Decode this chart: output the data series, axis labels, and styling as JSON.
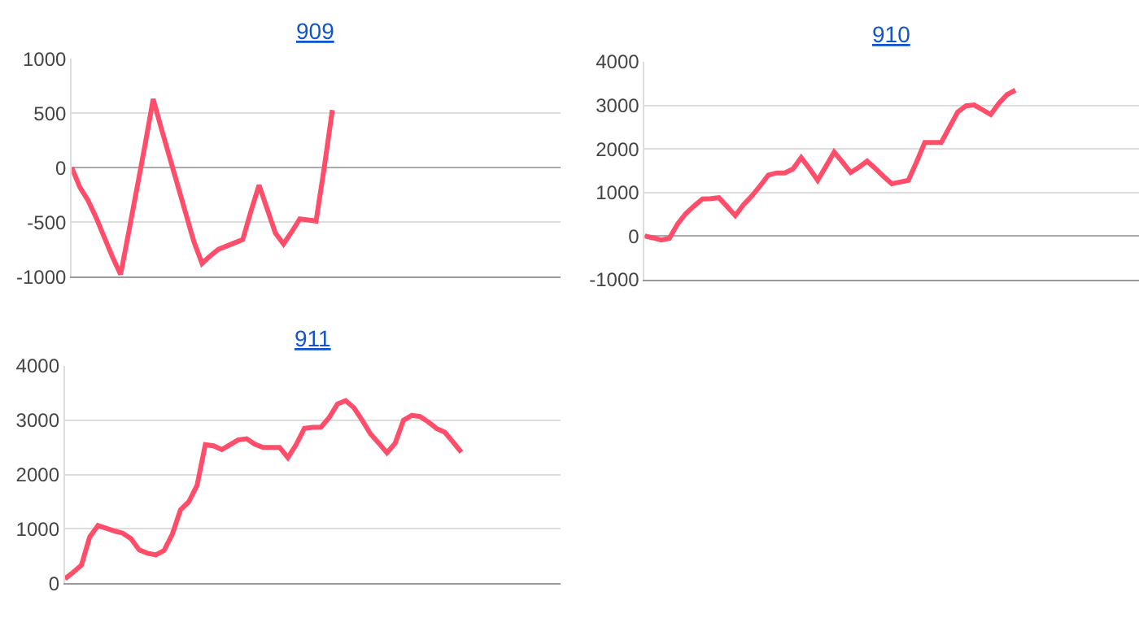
{
  "chart_data": [
    {
      "type": "line",
      "title": "909",
      "categories": [
        null,
        null,
        null,
        null,
        null,
        null,
        null,
        null,
        null,
        null,
        null,
        null,
        null,
        null,
        null,
        null,
        null,
        null,
        null,
        null,
        null,
        null,
        null,
        null,
        null,
        null,
        null,
        null,
        null,
        null,
        null,
        null,
        null,
        null,
        null,
        null,
        null,
        null,
        null,
        null,
        null,
        null,
        null,
        null,
        null,
        null,
        null,
        null,
        null,
        null,
        null,
        null,
        null,
        null,
        null,
        null,
        null,
        null,
        null,
        null,
        null
      ],
      "series": [
        {
          "color": "#ff4d6a",
          "values": [
            0,
            -180,
            -300,
            -460,
            -640,
            -820,
            -980,
            -590,
            -190,
            210,
            630,
            360,
            100,
            -160,
            -420,
            -680,
            -880,
            -810,
            -750,
            -720,
            -690,
            -660,
            -400,
            -160,
            -380,
            -600,
            -700,
            -590,
            -470,
            -480,
            -490,
            0,
            530,
            null,
            null,
            null,
            null,
            null,
            null,
            null,
            null,
            null,
            null,
            null,
            null,
            null,
            null,
            null,
            null,
            null,
            null,
            null,
            null,
            null,
            null,
            null,
            null,
            null,
            null,
            null,
            null
          ]
        }
      ],
      "ylim": [
        -1000,
        1000
      ],
      "yticks": [
        -1000,
        -500,
        0,
        500,
        1000
      ],
      "grid": "y",
      "tick_labels": "y"
    },
    {
      "type": "line",
      "title": "910",
      "categories": [
        null,
        null,
        null,
        null,
        null,
        null,
        null,
        null,
        null,
        null,
        null,
        null,
        null,
        null,
        null,
        null,
        null,
        null,
        null,
        null,
        null,
        null,
        null,
        null,
        null,
        null,
        null,
        null,
        null,
        null,
        null,
        null,
        null,
        null,
        null,
        null,
        null,
        null,
        null,
        null,
        null,
        null,
        null,
        null,
        null,
        null,
        null,
        null,
        null,
        null,
        null,
        null,
        null,
        null,
        null,
        null,
        null,
        null,
        null,
        null,
        null
      ],
      "series": [
        {
          "color": "#ff4d6a",
          "values": [
            0,
            -40,
            -90,
            -50,
            280,
            520,
            690,
            850,
            860,
            880,
            680,
            470,
            720,
            920,
            1150,
            1400,
            1450,
            1450,
            1540,
            1800,
            1550,
            1280,
            1600,
            1930,
            1700,
            1460,
            1580,
            1720,
            1550,
            1370,
            1200,
            1240,
            1280,
            1700,
            2150,
            2150,
            2150,
            2500,
            2850,
            2990,
            3010,
            2900,
            2790,
            3050,
            3250,
            3350,
            null,
            null,
            null,
            null,
            null,
            null,
            null,
            null,
            null,
            null,
            null,
            null,
            null,
            null,
            null
          ]
        }
      ],
      "ylim": [
        -1000,
        4000
      ],
      "yticks": [
        -1000,
        0,
        1000,
        2000,
        3000,
        4000
      ],
      "grid": "y",
      "tick_labels": "y"
    },
    {
      "type": "line",
      "title": "911",
      "categories": [
        null,
        null,
        null,
        null,
        null,
        null,
        null,
        null,
        null,
        null,
        null,
        null,
        null,
        null,
        null,
        null,
        null,
        null,
        null,
        null,
        null,
        null,
        null,
        null,
        null,
        null,
        null,
        null,
        null,
        null,
        null,
        null,
        null,
        null,
        null,
        null,
        null,
        null,
        null,
        null,
        null,
        null,
        null,
        null,
        null,
        null,
        null,
        null,
        null,
        null,
        null,
        null,
        null,
        null,
        null,
        null,
        null,
        null,
        null,
        null,
        null
      ],
      "series": [
        {
          "color": "#ff4d6a",
          "values": [
            80,
            200,
            330,
            850,
            1060,
            1010,
            960,
            920,
            820,
            610,
            550,
            520,
            600,
            900,
            1350,
            1500,
            1800,
            2550,
            2530,
            2460,
            2550,
            2640,
            2660,
            2560,
            2500,
            2500,
            2500,
            2310,
            2550,
            2850,
            2870,
            2870,
            3050,
            3300,
            3360,
            3230,
            3000,
            2750,
            2580,
            2400,
            2580,
            3000,
            3090,
            3070,
            2970,
            2850,
            2780,
            2600,
            2410,
            null,
            null,
            null,
            null,
            null,
            null,
            null,
            null,
            null,
            null,
            null,
            null
          ]
        }
      ],
      "ylim": [
        0,
        4000
      ],
      "yticks": [
        0,
        1000,
        2000,
        3000,
        4000
      ],
      "grid": "y",
      "tick_labels": "y"
    }
  ]
}
